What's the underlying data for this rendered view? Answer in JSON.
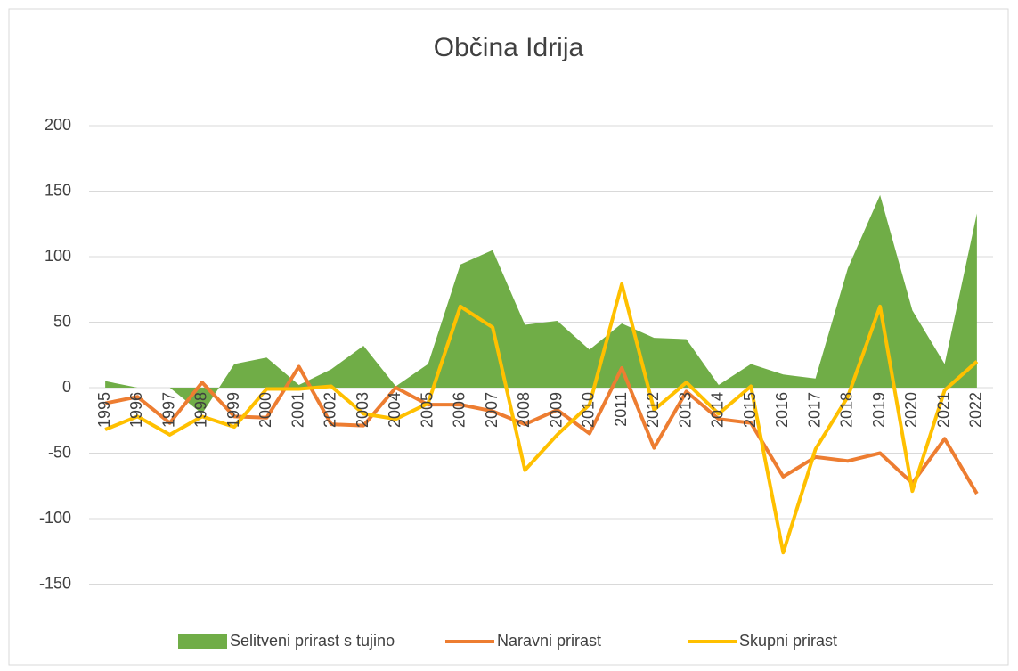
{
  "chart_data": {
    "type": "line",
    "title": "Občina Idrija",
    "categories": [
      "1995",
      "1996",
      "1997",
      "1998",
      "1999",
      "2000",
      "2001",
      "2002",
      "2003",
      "2004",
      "2005",
      "2006",
      "2007",
      "2008",
      "2009",
      "2010",
      "2011",
      "2012",
      "2013",
      "2014",
      "2015",
      "2016",
      "2017",
      "2018",
      "2019",
      "2020",
      "2021",
      "2022"
    ],
    "series": [
      {
        "name": "Selitveni prirast s tujino",
        "type": "area",
        "color": "#70ad47",
        "values": [
          5,
          0,
          0,
          -20,
          18,
          23,
          2,
          14,
          32,
          1,
          18,
          94,
          105,
          48,
          51,
          29,
          49,
          38,
          37,
          2,
          18,
          10,
          7,
          91,
          147,
          59,
          18,
          133
        ]
      },
      {
        "name": "Naravni prirast",
        "type": "line",
        "color": "#ed7d31",
        "values": [
          -12,
          -7,
          -27,
          4,
          -22,
          -23,
          16,
          -28,
          -29,
          0,
          -13,
          -13,
          -18,
          -28,
          -17,
          -35,
          15,
          -46,
          -3,
          -24,
          -27,
          -68,
          -53,
          -56,
          -50,
          -73,
          -39,
          -81
        ]
      },
      {
        "name": "Skupni prirast",
        "type": "line",
        "color": "#ffc000",
        "values": [
          -32,
          -22,
          -36,
          -22,
          -30,
          -1,
          -1,
          1,
          -20,
          -24,
          -12,
          62,
          46,
          -63,
          -36,
          -13,
          79,
          -17,
          4,
          -20,
          1,
          -126,
          -47,
          -7,
          62,
          -79,
          -2,
          20
        ]
      }
    ],
    "ylim": [
      -150,
      200
    ],
    "yticks": [
      -150,
      -100,
      -50,
      0,
      50,
      100,
      150,
      200
    ],
    "grid": true,
    "legend": "bottom"
  }
}
